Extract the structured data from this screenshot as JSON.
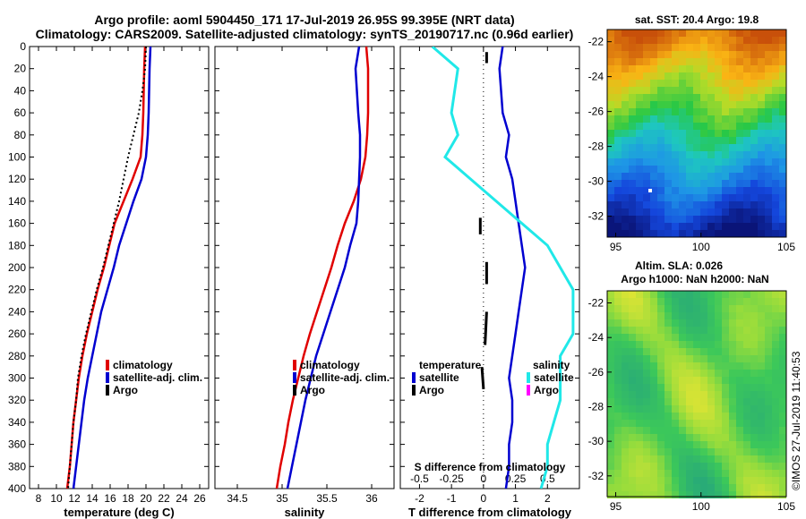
{
  "title": {
    "line1": "Argo profile: aoml 5904450_171 17-Jul-2019 26.95S 99.395E (NRT data)",
    "line2": "Climatology: CARS2009. Satellite-adjusted climatology: synTS_20190717.nc (0.96d earlier)"
  },
  "colors": {
    "climatology": "#e00000",
    "satellite": "#0000d0",
    "argo": "#000000",
    "sat_s": "#20e8e8",
    "argo_s": "#ff00ff"
  },
  "chart_data": [
    {
      "type": "line",
      "id": "temperature",
      "xlabel": "temperature (deg C)",
      "ylabel": "",
      "xlim": [
        7,
        27
      ],
      "ylim": [
        400,
        0
      ],
      "xticks": [
        8,
        10,
        12,
        14,
        16,
        18,
        20,
        22,
        24,
        26
      ],
      "yticks": [
        0,
        20,
        40,
        60,
        80,
        100,
        120,
        140,
        160,
        180,
        200,
        220,
        240,
        260,
        280,
        300,
        320,
        340,
        360,
        380,
        400
      ],
      "legend": [
        "climatology",
        "satellite-adj. clim.",
        "Argo"
      ],
      "series": [
        {
          "name": "climatology",
          "points": [
            [
              19.9,
              0
            ],
            [
              19.8,
              20
            ],
            [
              19.7,
              60
            ],
            [
              19.6,
              80
            ],
            [
              19.4,
              100
            ],
            [
              18.5,
              120
            ],
            [
              17.5,
              140
            ],
            [
              16.5,
              160
            ],
            [
              15.9,
              180
            ],
            [
              15.3,
              200
            ],
            [
              14.6,
              220
            ],
            [
              14.0,
              240
            ],
            [
              13.4,
              260
            ],
            [
              12.9,
              280
            ],
            [
              12.5,
              300
            ],
            [
              12.2,
              320
            ],
            [
              11.9,
              340
            ],
            [
              11.7,
              360
            ],
            [
              11.5,
              380
            ],
            [
              11.2,
              400
            ]
          ]
        },
        {
          "name": "satellite-adj. clim.",
          "points": [
            [
              20.5,
              0
            ],
            [
              20.4,
              20
            ],
            [
              20.3,
              60
            ],
            [
              20.2,
              80
            ],
            [
              20.0,
              100
            ],
            [
              19.5,
              120
            ],
            [
              18.6,
              140
            ],
            [
              17.8,
              160
            ],
            [
              17.0,
              180
            ],
            [
              16.4,
              200
            ],
            [
              15.7,
              220
            ],
            [
              15.0,
              240
            ],
            [
              14.5,
              260
            ],
            [
              14.0,
              280
            ],
            [
              13.5,
              300
            ],
            [
              13.1,
              320
            ],
            [
              12.8,
              340
            ],
            [
              12.5,
              360
            ],
            [
              12.2,
              380
            ],
            [
              11.9,
              400
            ]
          ]
        },
        {
          "name": "Argo",
          "points": [
            [
              20.0,
              0
            ],
            [
              19.9,
              20
            ],
            [
              19.6,
              40
            ],
            [
              19.2,
              60
            ],
            [
              18.6,
              80
            ],
            [
              18.0,
              100
            ],
            [
              17.5,
              120
            ],
            [
              17.0,
              140
            ],
            [
              16.4,
              160
            ],
            [
              15.8,
              180
            ],
            [
              15.2,
              200
            ],
            [
              14.5,
              220
            ],
            [
              13.9,
              240
            ],
            [
              13.3,
              260
            ],
            [
              12.8,
              280
            ],
            [
              12.4,
              300
            ],
            [
              12.2,
              320
            ],
            [
              11.9,
              340
            ],
            [
              11.7,
              360
            ],
            [
              11.5,
              380
            ],
            [
              11.3,
              400
            ]
          ]
        }
      ]
    },
    {
      "type": "line",
      "id": "salinity",
      "xlabel": "salinity",
      "xlim": [
        34.25,
        36.25
      ],
      "ylim": [
        400,
        0
      ],
      "xticks": [
        34.5,
        35,
        35.5,
        36
      ],
      "legend": [
        "climatology",
        "satellite-adj. clim.",
        "Argo"
      ],
      "series": [
        {
          "name": "climatology",
          "points": [
            [
              35.94,
              0
            ],
            [
              35.96,
              20
            ],
            [
              35.96,
              60
            ],
            [
              35.95,
              80
            ],
            [
              35.93,
              100
            ],
            [
              35.88,
              120
            ],
            [
              35.8,
              140
            ],
            [
              35.7,
              160
            ],
            [
              35.62,
              180
            ],
            [
              35.55,
              200
            ],
            [
              35.47,
              220
            ],
            [
              35.39,
              240
            ],
            [
              35.31,
              260
            ],
            [
              35.24,
              280
            ],
            [
              35.18,
              300
            ],
            [
              35.12,
              320
            ],
            [
              35.07,
              340
            ],
            [
              35.03,
              360
            ],
            [
              34.98,
              380
            ],
            [
              34.94,
              400
            ]
          ]
        },
        {
          "name": "satellite-adj. clim.",
          "points": [
            [
              35.86,
              0
            ],
            [
              35.82,
              20
            ],
            [
              35.85,
              60
            ],
            [
              35.87,
              80
            ],
            [
              35.87,
              100
            ],
            [
              35.86,
              120
            ],
            [
              35.85,
              140
            ],
            [
              35.83,
              160
            ],
            [
              35.76,
              180
            ],
            [
              35.7,
              200
            ],
            [
              35.62,
              220
            ],
            [
              35.54,
              240
            ],
            [
              35.46,
              260
            ],
            [
              35.38,
              280
            ],
            [
              35.32,
              300
            ],
            [
              35.26,
              320
            ],
            [
              35.21,
              340
            ],
            [
              35.16,
              360
            ],
            [
              35.11,
              380
            ],
            [
              35.06,
              400
            ]
          ]
        }
      ]
    },
    {
      "type": "line",
      "id": "difference",
      "xlabel": "T difference from climatology",
      "xlabel2": "S difference from climatology",
      "xlim": [
        -2.6,
        3.0
      ],
      "ylim": [
        400,
        0
      ],
      "xticks": [
        -2,
        -1,
        0,
        1,
        2
      ],
      "xticks2": [
        -0.5,
        -0.25,
        0,
        0.25,
        0.5
      ],
      "legend_left_title": "temperature",
      "legend_right_title": "salinity",
      "legend_left": [
        "satellite",
        "Argo"
      ],
      "legend_right": [
        "satellite",
        "Argo"
      ],
      "series": [
        {
          "name": "T satellite",
          "points": [
            [
              0.6,
              0
            ],
            [
              0.5,
              20
            ],
            [
              0.6,
              60
            ],
            [
              0.8,
              80
            ],
            [
              0.7,
              100
            ],
            [
              0.9,
              120
            ],
            [
              1.0,
              140
            ],
            [
              1.1,
              160
            ],
            [
              1.2,
              180
            ],
            [
              1.3,
              200
            ],
            [
              1.2,
              220
            ],
            [
              1.1,
              240
            ],
            [
              1.0,
              260
            ],
            [
              0.9,
              280
            ],
            [
              0.8,
              300
            ],
            [
              0.9,
              320
            ],
            [
              0.9,
              340
            ],
            [
              0.8,
              360
            ],
            [
              0.8,
              380
            ],
            [
              0.7,
              400
            ]
          ]
        },
        {
          "name": "S satellite",
          "points": [
            [
              -0.4,
              0
            ],
            [
              -0.2,
              20
            ],
            [
              -0.25,
              60
            ],
            [
              -0.2,
              80
            ],
            [
              -0.3,
              100
            ],
            [
              -0.1,
              120
            ],
            [
              0.1,
              140
            ],
            [
              0.3,
              160
            ],
            [
              0.5,
              180
            ],
            [
              0.6,
              200
            ],
            [
              0.7,
              220
            ],
            [
              0.7,
              240
            ],
            [
              0.7,
              260
            ],
            [
              0.6,
              280
            ],
            [
              0.6,
              300
            ],
            [
              0.6,
              320
            ],
            [
              0.55,
              340
            ],
            [
              0.5,
              360
            ],
            [
              0.5,
              380
            ],
            [
              0.45,
              400
            ]
          ]
        },
        {
          "name": "T Argo segments",
          "points": [
            [
              0.1,
              5
            ],
            [
              0.1,
              15
            ],
            [
              -0.1,
              155
            ],
            [
              -0.1,
              170
            ],
            [
              0.1,
              195
            ],
            [
              0.1,
              215
            ],
            [
              0.1,
              240
            ],
            [
              0.05,
              270
            ],
            [
              -0.05,
              290
            ],
            [
              0.0,
              310
            ]
          ]
        }
      ]
    },
    {
      "type": "heatmap",
      "id": "sst-map",
      "title": "sat. SST: 20.4 Argo: 19.8",
      "xticks": [
        95,
        100,
        105
      ],
      "yticks": [
        -22,
        -24,
        -26,
        -28,
        -30,
        -32
      ],
      "xlim": [
        94.5,
        105
      ],
      "ylim": [
        -33.2,
        -21.3
      ]
    },
    {
      "type": "heatmap",
      "id": "sla-map",
      "title": "Altim. SLA: 0.026",
      "subtitle": "Argo h1000: NaN h2000: NaN",
      "xticks": [
        95,
        100,
        105
      ],
      "yticks": [
        -22,
        -24,
        -26,
        -28,
        -30,
        -32
      ],
      "xlim": [
        94.5,
        105
      ],
      "ylim": [
        -33.2,
        -21.3
      ]
    }
  ],
  "watermark": "©IMOS 27-Jul-2019 11:40:53"
}
